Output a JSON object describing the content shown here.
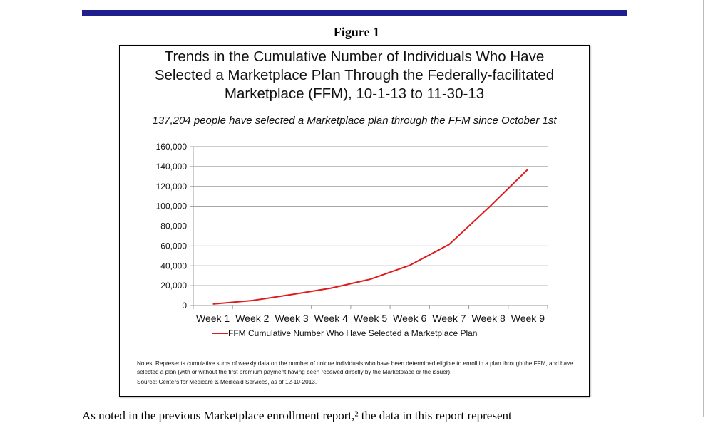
{
  "figure_label": "Figure 1",
  "chart_data": {
    "type": "line",
    "title_lines": [
      "Trends in the Cumulative Number of Individuals Who Have",
      "Selected a Marketplace Plan Through the Federally-facilitated",
      "Marketplace (FFM), 10-1-13 to 11-30-13"
    ],
    "subtitle": "137,204 people have selected a Marketplace plan through the FFM since October 1st",
    "categories": [
      "Week 1",
      "Week 2",
      "Week 3",
      "Week 4",
      "Week 5",
      "Week 6",
      "Week 7",
      "Week 8",
      "Week 9"
    ],
    "series": [
      {
        "name": "FFM Cumulative Number Who Have Selected a Marketplace Plan",
        "color": "#e01b1b",
        "values": [
          1500,
          5000,
          11000,
          17500,
          26500,
          40500,
          61500,
          98500,
          137204
        ]
      }
    ],
    "yticks": [
      "0",
      "20,000",
      "40,000",
      "60,000",
      "80,000",
      "100,000",
      "120,000",
      "140,000",
      "160,000"
    ],
    "ylim": [
      0,
      160000
    ],
    "grid": true,
    "legend_placement": "bottom"
  },
  "notes": "Notes:  Represents cumulative sums of weekly data on the number of unique individuals who have been determined eligible to enroll in a plan through the FFM, and have selected a plan (with or without the first premium payment having been received directly by the Marketplace or the issuer).",
  "source": "Source:  Centers for Medicare & Medicaid Services, as of 12-10-2013.",
  "body_text": "As noted in the previous Marketplace enrollment report,² the data in this report represent"
}
